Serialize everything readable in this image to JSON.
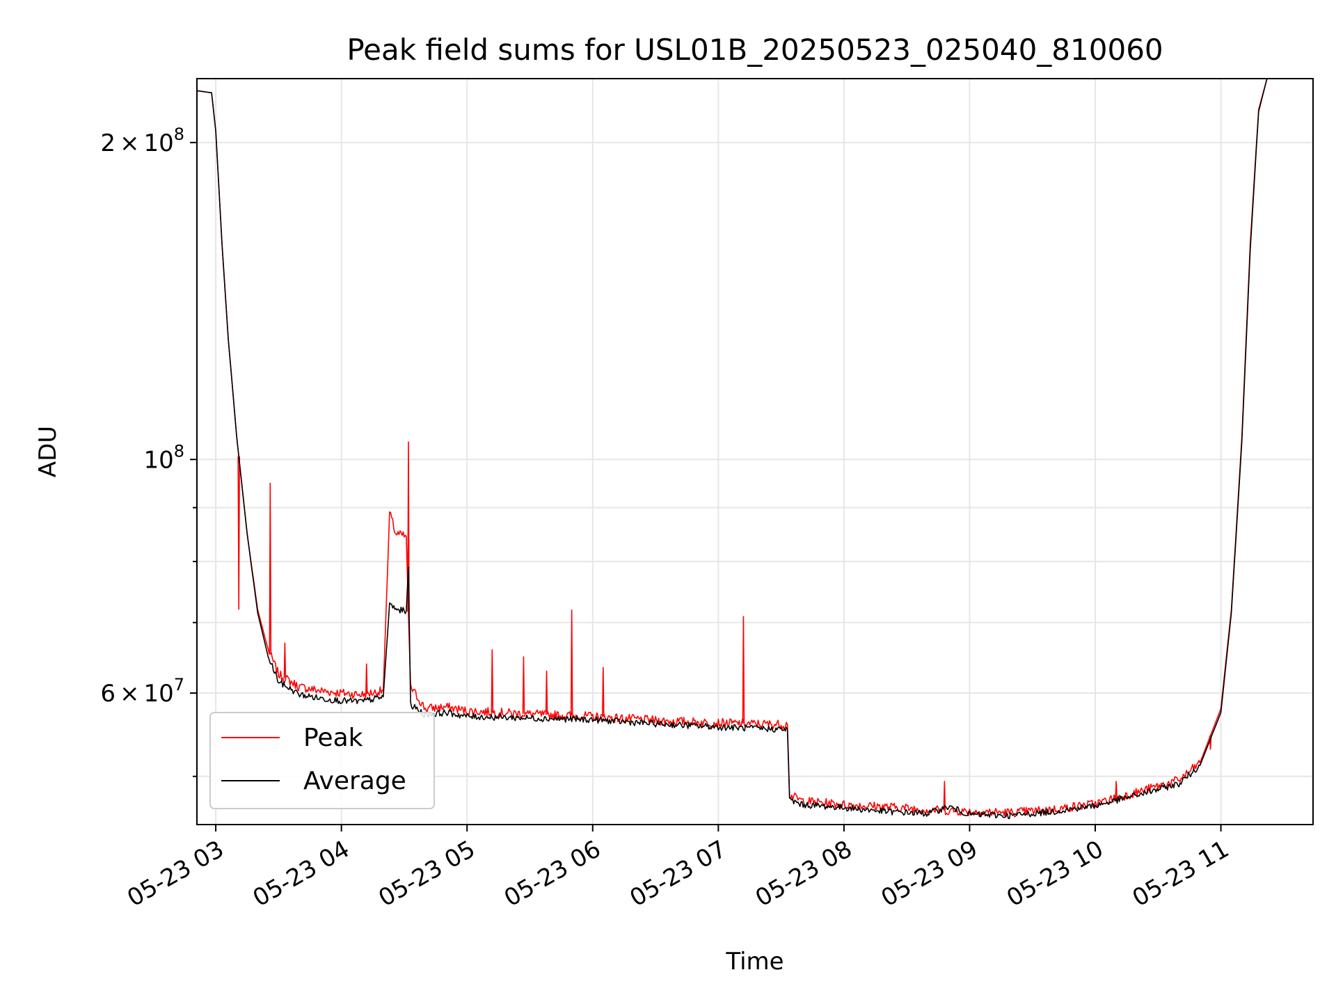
{
  "chart_data": {
    "type": "line",
    "title": "Peak field sums for USL01B_20250523_025040_810060",
    "xlabel": "Time",
    "ylabel": "ADU",
    "yscale": "log",
    "xlim": [
      "2025-05-23 02:51",
      "2025-05-23 11:44"
    ],
    "ylim": [
      45000000,
      230000000
    ],
    "x_ticks": [
      "05-23 03",
      "05-23 04",
      "05-23 05",
      "05-23 06",
      "05-23 07",
      "05-23 08",
      "05-23 09",
      "05-23 10",
      "05-23 11"
    ],
    "y_ticks": [
      {
        "value": 200000000,
        "mantissa": "2",
        "times": "×",
        "base": "10",
        "exp": "8"
      },
      {
        "value": 100000000,
        "mantissa": "",
        "times": "",
        "base": "10",
        "exp": "8"
      },
      {
        "value": 60000000,
        "mantissa": "6",
        "times": "×",
        "base": "10",
        "exp": "7"
      }
    ],
    "grid": true,
    "legend": {
      "position": "lower-left"
    },
    "series": [
      {
        "name": "Peak",
        "color": "#ff0000",
        "points": [
          [
            "2025-05-23 02:51",
            224000000
          ],
          [
            "2025-05-23 02:58",
            223000000
          ],
          [
            "2025-05-23 03:00",
            205000000
          ],
          [
            "2025-05-23 03:03",
            160000000
          ],
          [
            "2025-05-23 03:06",
            130000000
          ],
          [
            "2025-05-23 03:10",
            105000000
          ],
          [
            "2025-05-23 03:15",
            85000000
          ],
          [
            "2025-05-23 03:20",
            72000000
          ],
          [
            "2025-05-23 03:25",
            66000000
          ],
          [
            "2025-05-23 03:30",
            62500000
          ],
          [
            "2025-05-23 03:40",
            60800000
          ],
          [
            "2025-05-23 03:50",
            60300000
          ],
          [
            "2025-05-23 04:00",
            60000000
          ],
          [
            "2025-05-23 04:10",
            59800000
          ],
          [
            "2025-05-23 04:20",
            60300000
          ],
          [
            "2025-05-23 04:23",
            89000000
          ],
          [
            "2025-05-23 04:26",
            85000000
          ],
          [
            "2025-05-23 04:31",
            84500000
          ],
          [
            "2025-05-23 04:33",
            60800000
          ],
          [
            "2025-05-23 04:40",
            58000000
          ],
          [
            "2025-05-23 04:50",
            58200000
          ],
          [
            "2025-05-23 05:00",
            57700000
          ],
          [
            "2025-05-23 05:30",
            57300000
          ],
          [
            "2025-05-23 06:00",
            57000000
          ],
          [
            "2025-05-23 06:30",
            56500000
          ],
          [
            "2025-05-23 07:00",
            56200000
          ],
          [
            "2025-05-23 07:33",
            56000000
          ],
          [
            "2025-05-23 07:34",
            48000000
          ],
          [
            "2025-05-23 07:40",
            47400000
          ],
          [
            "2025-05-23 08:00",
            47000000
          ],
          [
            "2025-05-23 08:20",
            46800000
          ],
          [
            "2025-05-23 08:40",
            46500000
          ],
          [
            "2025-05-23 09:00",
            46300000
          ],
          [
            "2025-05-23 09:20",
            46200000
          ],
          [
            "2025-05-23 09:40",
            46500000
          ],
          [
            "2025-05-23 10:00",
            47100000
          ],
          [
            "2025-05-23 10:20",
            48300000
          ],
          [
            "2025-05-23 10:40",
            49600000
          ],
          [
            "2025-05-23 10:50",
            51500000
          ],
          [
            "2025-05-23 11:00",
            58000000
          ],
          [
            "2025-05-23 11:05",
            72000000
          ],
          [
            "2025-05-23 11:10",
            105000000
          ],
          [
            "2025-05-23 11:14",
            160000000
          ],
          [
            "2025-05-23 11:18",
            215000000
          ],
          [
            "2025-05-23 11:22",
            230000000
          ]
        ],
        "spikes": [
          [
            "2025-05-23 03:11",
            72000000
          ],
          [
            "2025-05-23 03:26",
            95000000
          ],
          [
            "2025-05-23 03:33",
            67000000
          ],
          [
            "2025-05-23 04:12",
            64000000
          ],
          [
            "2025-05-23 04:32",
            104000000
          ],
          [
            "2025-05-23 05:12",
            66000000
          ],
          [
            "2025-05-23 05:27",
            65000000
          ],
          [
            "2025-05-23 05:38",
            63000000
          ],
          [
            "2025-05-23 05:50",
            72000000
          ],
          [
            "2025-05-23 06:05",
            63500000
          ],
          [
            "2025-05-23 07:12",
            71000000
          ],
          [
            "2025-05-23 08:48",
            49500000
          ],
          [
            "2025-05-23 10:10",
            49500000
          ],
          [
            "2025-05-23 10:55",
            53000000
          ]
        ]
      },
      {
        "name": "Average",
        "color": "#000000",
        "points": [
          [
            "2025-05-23 02:51",
            224000000
          ],
          [
            "2025-05-23 02:58",
            223000000
          ],
          [
            "2025-05-23 03:00",
            205000000
          ],
          [
            "2025-05-23 03:03",
            160000000
          ],
          [
            "2025-05-23 03:06",
            130000000
          ],
          [
            "2025-05-23 03:10",
            105000000
          ],
          [
            "2025-05-23 03:15",
            85000000
          ],
          [
            "2025-05-23 03:20",
            71500000
          ],
          [
            "2025-05-23 03:25",
            65000000
          ],
          [
            "2025-05-23 03:30",
            61500000
          ],
          [
            "2025-05-23 03:40",
            59800000
          ],
          [
            "2025-05-23 03:50",
            59300000
          ],
          [
            "2025-05-23 04:00",
            59000000
          ],
          [
            "2025-05-23 04:10",
            58900000
          ],
          [
            "2025-05-23 04:20",
            59500000
          ],
          [
            "2025-05-23 04:23",
            73000000
          ],
          [
            "2025-05-23 04:26",
            72000000
          ],
          [
            "2025-05-23 04:31",
            71800000
          ],
          [
            "2025-05-23 04:32",
            79000000
          ],
          [
            "2025-05-23 04:33",
            58500000
          ],
          [
            "2025-05-23 04:40",
            57200000
          ],
          [
            "2025-05-23 04:50",
            57500000
          ],
          [
            "2025-05-23 05:00",
            57000000
          ],
          [
            "2025-05-23 05:30",
            56800000
          ],
          [
            "2025-05-23 06:00",
            56600000
          ],
          [
            "2025-05-23 06:30",
            56100000
          ],
          [
            "2025-05-23 07:00",
            55700000
          ],
          [
            "2025-05-23 07:33",
            55400000
          ],
          [
            "2025-05-23 07:34",
            47500000
          ],
          [
            "2025-05-23 07:40",
            47000000
          ],
          [
            "2025-05-23 08:00",
            46700000
          ],
          [
            "2025-05-23 08:20",
            46300000
          ],
          [
            "2025-05-23 08:40",
            46100000
          ],
          [
            "2025-05-23 08:50",
            46800000
          ],
          [
            "2025-05-23 09:00",
            46000000
          ],
          [
            "2025-05-23 09:20",
            45900000
          ],
          [
            "2025-05-23 09:40",
            46300000
          ],
          [
            "2025-05-23 10:00",
            46900000
          ],
          [
            "2025-05-23 10:20",
            48000000
          ],
          [
            "2025-05-23 10:40",
            49200000
          ],
          [
            "2025-05-23 10:50",
            51200000
          ],
          [
            "2025-05-23 11:00",
            57500000
          ],
          [
            "2025-05-23 11:05",
            71500000
          ],
          [
            "2025-05-23 11:10",
            104000000
          ],
          [
            "2025-05-23 11:14",
            158000000
          ],
          [
            "2025-05-23 11:18",
            214000000
          ],
          [
            "2025-05-23 11:22",
            230000000
          ]
        ],
        "spikes": []
      }
    ]
  }
}
